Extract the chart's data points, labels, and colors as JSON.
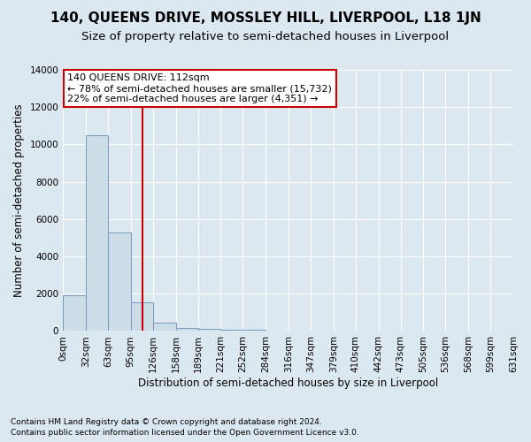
{
  "title": "140, QUEENS DRIVE, MOSSLEY HILL, LIVERPOOL, L18 1JN",
  "subtitle": "Size of property relative to semi-detached houses in Liverpool",
  "xlabel": "Distribution of semi-detached houses by size in Liverpool",
  "ylabel": "Number of semi-detached properties",
  "footnote1": "Contains HM Land Registry data © Crown copyright and database right 2024.",
  "footnote2": "Contains public sector information licensed under the Open Government Licence v3.0.",
  "annotation_line1": "140 QUEENS DRIVE: 112sqm",
  "annotation_line2": "← 78% of semi-detached houses are smaller (15,732)",
  "annotation_line3": "22% of semi-detached houses are larger (4,351) →",
  "property_size": 112,
  "bin_edges": [
    0,
    32,
    63,
    95,
    126,
    158,
    189,
    221,
    252,
    284,
    316,
    347,
    379,
    410,
    442,
    473,
    505,
    536,
    568,
    599,
    631
  ],
  "bar_heights": [
    1900,
    10500,
    5300,
    1550,
    450,
    175,
    100,
    70,
    60,
    0,
    0,
    0,
    0,
    0,
    0,
    0,
    0,
    0,
    0,
    0
  ],
  "bar_color": "#ccdde8",
  "bar_edge_color": "#7799bb",
  "vline_color": "#cc0000",
  "vline_x": 112,
  "ylim": [
    0,
    14000
  ],
  "yticks": [
    0,
    2000,
    4000,
    6000,
    8000,
    10000,
    12000,
    14000
  ],
  "bg_color": "#dce8f0",
  "plot_bg_color": "#dce8f0",
  "grid_color": "#ffffff",
  "annotation_box_edge_color": "#cc0000",
  "title_fontsize": 11,
  "subtitle_fontsize": 9.5,
  "axis_label_fontsize": 8.5,
  "tick_fontsize": 7.5,
  "annotation_fontsize": 8
}
